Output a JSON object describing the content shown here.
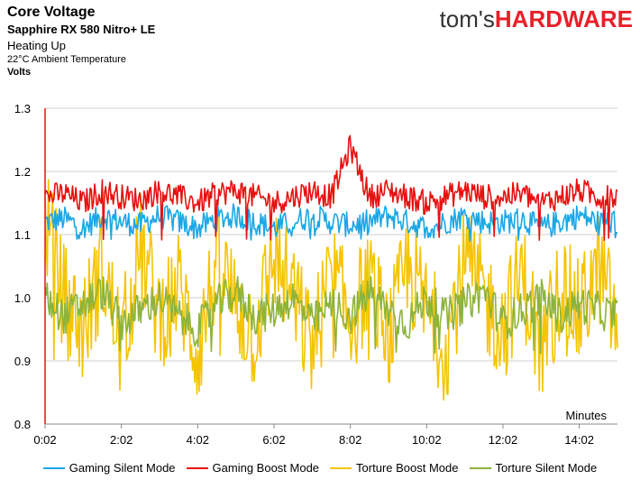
{
  "header": {
    "title": "Core Voltage",
    "subtitle": "Sapphire RX 580 Nitro+ LE",
    "subtitle2": "Heating Up",
    "subtitle3": "22°C Ambient Temperature",
    "ylabel": "Volts"
  },
  "brand": {
    "part1": "tom's",
    "part2": "HARDWARE"
  },
  "chart_data": {
    "type": "line",
    "ylabel": "Volts",
    "xlabel": "Minutes",
    "ylim": [
      0.8,
      1.3
    ],
    "yticks": [
      "0.8",
      "0.9",
      "1.0",
      "1.1",
      "1.2",
      "1.3"
    ],
    "xticks": [
      "0:02",
      "2:02",
      "4:02",
      "6:02",
      "8:02",
      "10:02",
      "12:02",
      "14:02"
    ],
    "x_range_minutes": [
      0,
      15
    ],
    "grid": "horizontal",
    "legend_position": "bottom",
    "series": [
      {
        "name": "Gaming Silent Mode",
        "color": "#1aa7e6",
        "level": 1.12,
        "spread": 0.02,
        "dip": 1.09,
        "values": [
          1.12,
          1.125,
          1.11,
          1.13,
          1.12,
          1.115,
          1.13,
          1.12,
          1.11,
          1.125,
          1.13,
          1.12,
          1.11,
          1.12,
          1.13,
          1.12,
          1.115,
          1.12,
          1.13,
          1.12,
          1.11,
          1.12,
          1.13,
          1.12,
          1.12,
          1.125,
          1.11,
          1.12,
          1.13,
          1.12,
          1.12
        ]
      },
      {
        "name": "Gaming Boost Mode",
        "color": "#e81010",
        "level": 1.16,
        "spread": 0.02,
        "dip": 1.09,
        "values": [
          1.16,
          1.165,
          1.15,
          1.17,
          1.16,
          1.155,
          1.17,
          1.16,
          1.15,
          1.165,
          1.17,
          1.16,
          1.15,
          1.16,
          1.17,
          1.16,
          1.24,
          1.16,
          1.17,
          1.16,
          1.15,
          1.16,
          1.17,
          1.16,
          1.16,
          1.165,
          1.15,
          1.16,
          1.17,
          1.16,
          1.16
        ]
      },
      {
        "name": "Torture Boost Mode",
        "color": "#f5c400",
        "level": 1.0,
        "spread": 0.09,
        "dip": 0.9,
        "values": [
          1.13,
          1.0,
          0.95,
          1.05,
          0.92,
          1.08,
          0.97,
          1.02,
          0.91,
          1.06,
          0.99,
          0.94,
          1.07,
          1.0,
          0.92,
          1.04,
          0.96,
          1.03,
          0.93,
          1.05,
          0.98,
          0.92,
          1.06,
          1.0,
          0.95,
          1.04,
          0.91,
          1.02,
          0.97,
          1.05,
          0.95
        ]
      },
      {
        "name": "Torture Silent Mode",
        "color": "#8db33a",
        "level": 0.985,
        "spread": 0.03,
        "dip": 0.91,
        "values": [
          1.0,
          0.97,
          0.99,
          1.01,
          0.96,
          0.98,
          1.0,
          0.97,
          0.95,
          0.99,
          1.01,
          0.97,
          0.98,
          1.0,
          0.96,
          0.99,
          0.97,
          1.01,
          0.98,
          0.96,
          1.0,
          0.97,
          0.99,
          1.01,
          0.96,
          0.98,
          1.0,
          0.97,
          0.99,
          0.98,
          0.97
        ]
      }
    ]
  }
}
